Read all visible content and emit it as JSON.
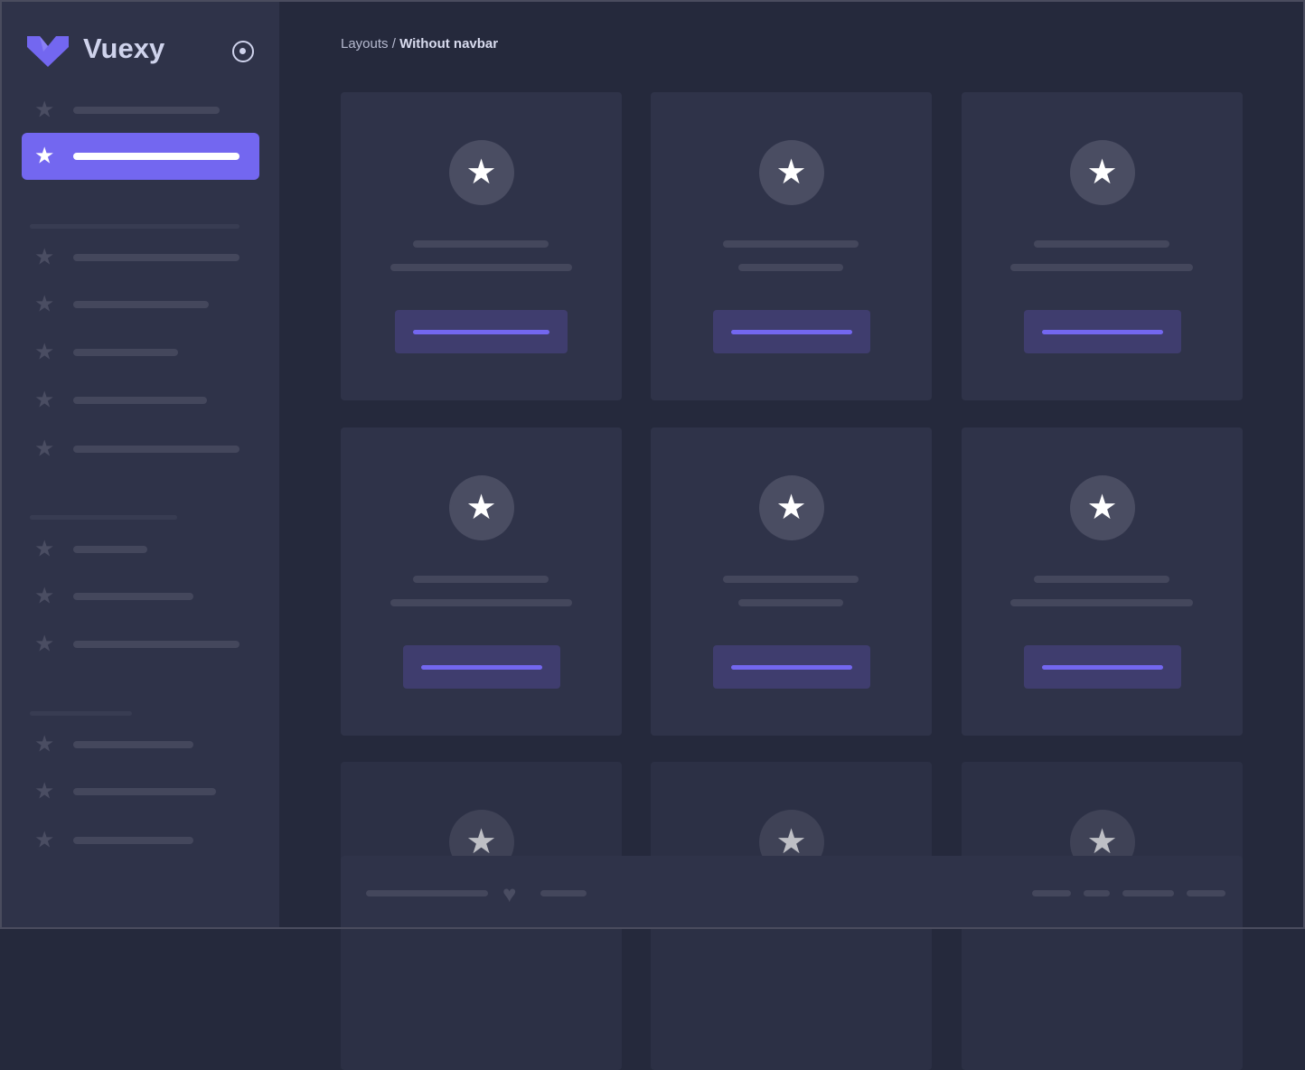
{
  "app": {
    "brand": "Vuexy",
    "accent": "#7367f0"
  },
  "breadcrumb": {
    "parent": "Layouts",
    "separator": " / ",
    "current": "Without navbar"
  },
  "icons": {
    "logo": "vuexy-logo",
    "pin": "radio-circle-icon",
    "nav": "star-icon",
    "card": "star-icon",
    "footer": "heart-icon"
  }
}
